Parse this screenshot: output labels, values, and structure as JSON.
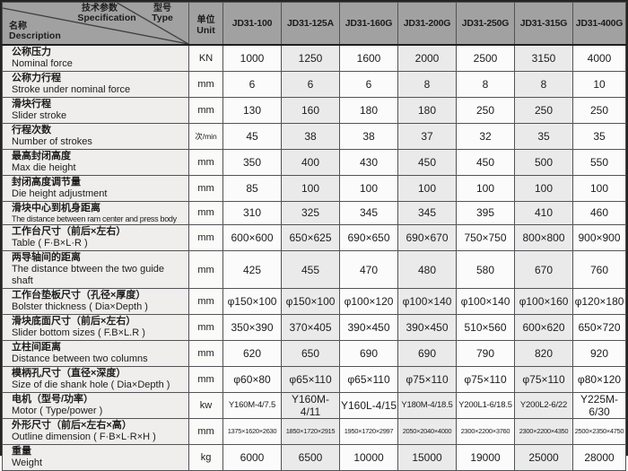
{
  "table": {
    "header": {
      "corner": {
        "spec_zh": "技术参数",
        "spec_en": "Specification",
        "type_zh": "型号",
        "type_en": "Type",
        "name_zh": "名称",
        "name_en": "Description"
      },
      "unit_zh": "单位",
      "unit_en": "Unit",
      "models": [
        "JD31-100",
        "JD31-125A",
        "JD31-160G",
        "JD31-200G",
        "JD31-250G",
        "JD31-315G",
        "JD31-400G"
      ]
    },
    "rows": [
      {
        "zh": "公称压力",
        "en": "Nominal force",
        "unit": "KN",
        "values": [
          "1000",
          "1250",
          "1600",
          "2000",
          "2500",
          "3150",
          "4000"
        ]
      },
      {
        "zh": "公称力行程",
        "en": "Stroke under nominal force",
        "unit": "mm",
        "values": [
          "6",
          "6",
          "6",
          "8",
          "8",
          "8",
          "10"
        ]
      },
      {
        "zh": "滑块行程",
        "en": "Slider stroke",
        "unit": "mm",
        "values": [
          "130",
          "160",
          "180",
          "180",
          "250",
          "250",
          "250"
        ]
      },
      {
        "zh": "行程次数",
        "en": "Number of strokes",
        "unit": "次/min",
        "values": [
          "45",
          "38",
          "38",
          "37",
          "32",
          "35",
          "35"
        ]
      },
      {
        "zh": "最高封闭高度",
        "en": "Max die height",
        "unit": "mm",
        "values": [
          "350",
          "400",
          "430",
          "450",
          "450",
          "500",
          "550"
        ]
      },
      {
        "zh": "封闭高度调节量",
        "en": "Die height adjustment",
        "unit": "mm",
        "values": [
          "85",
          "100",
          "100",
          "100",
          "100",
          "100",
          "100"
        ]
      },
      {
        "zh": "滑块中心到机身距离",
        "en": "The distance between ram center and press body",
        "unit": "mm",
        "values": [
          "310",
          "325",
          "345",
          "345",
          "395",
          "410",
          "460"
        ]
      },
      {
        "zh": "工作台尺寸（前后×左右）",
        "en": "Table ( F·B×L·R )",
        "unit": "mm",
        "values": [
          "600×600",
          "650×625",
          "690×650",
          "690×670",
          "750×750",
          "800×800",
          "900×900"
        ]
      },
      {
        "zh": "两导轴间的距离",
        "en": "The distance btween the two guide shaft",
        "unit": "mm",
        "values": [
          "425",
          "455",
          "470",
          "480",
          "580",
          "670",
          "760"
        ]
      },
      {
        "zh": "工作台垫板尺寸（孔径×厚度）",
        "en": "Bolster thickness ( Dia×Depth )",
        "unit": "mm",
        "values": [
          "φ150×100",
          "φ150×100",
          "φ100×120",
          "φ100×140",
          "φ100×140",
          "φ100×160",
          "φ120×180"
        ]
      },
      {
        "zh": "滑块底面尺寸（前后×左右）",
        "en": "Slider bottom sizes ( F.B×L.R )",
        "unit": "mm",
        "values": [
          "350×390",
          "370×405",
          "390×450",
          "390×450",
          "510×560",
          "600×620",
          "650×720"
        ]
      },
      {
        "zh": "立柱间距离",
        "en": "Distance between two columns",
        "unit": "mm",
        "values": [
          "620",
          "650",
          "690",
          "690",
          "790",
          "820",
          "920"
        ]
      },
      {
        "zh": "模柄孔尺寸（直径×深度）",
        "en": "Size of die shank hole ( Dia×Depth )",
        "unit": "mm",
        "values": [
          "φ60×80",
          "φ65×110",
          "φ65×110",
          "φ75×110",
          "φ75×110",
          "φ75×110",
          "φ80×120"
        ]
      },
      {
        "zh": "电机（型号/功率）",
        "en": "Motor ( Type/power )",
        "unit": "kw",
        "values": [
          "Y160M-4/7.5",
          "Y160M-4/11",
          "Y160L-4/15",
          "Y180M-4/18.5",
          "Y200L1-6/18.5",
          "Y200L2-6/22",
          "Y225M-6/30"
        ]
      },
      {
        "zh": "外形尺寸（前后×左右×高）",
        "en": "Outline dimension ( F·B×L·R×H )",
        "unit": "mm",
        "values": [
          "1375×1620×2630",
          "1850×1720×2915",
          "1950×1720×2997",
          "2050×2040×4000",
          "2300×2200×3760",
          "2300×2200×4350",
          "2500×2350×4750"
        ]
      },
      {
        "zh": "重量",
        "en": "Weight",
        "unit": "kg",
        "values": [
          "6000",
          "6500",
          "10000",
          "15000",
          "19000",
          "25000",
          "28000"
        ]
      }
    ]
  },
  "colors": {
    "header_bg": "#a1a1a1",
    "stripe": "#eaeaea",
    "border": "#525356"
  }
}
